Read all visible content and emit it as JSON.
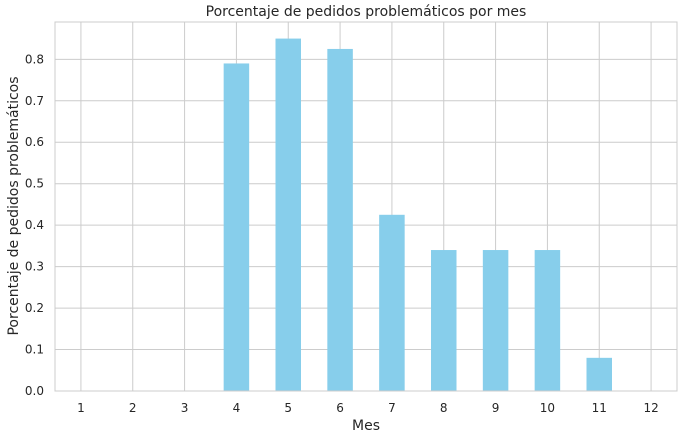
{
  "chart_data": {
    "type": "bar",
    "title": "Porcentaje de pedidos problemáticos por mes",
    "xlabel": "Mes",
    "ylabel": "Porcentaje de pedidos problemáticos",
    "categories": [
      "1",
      "2",
      "3",
      "4",
      "5",
      "6",
      "7",
      "8",
      "9",
      "10",
      "11",
      "12"
    ],
    "values": [
      0,
      0,
      0,
      0.79,
      0.85,
      0.825,
      0.425,
      0.34,
      0.34,
      0.34,
      0.08,
      0
    ],
    "ylim": [
      0,
      0.89
    ],
    "yticks": [
      "0.0",
      "0.1",
      "0.2",
      "0.3",
      "0.4",
      "0.5",
      "0.6",
      "0.7",
      "0.8"
    ],
    "grid": true,
    "legend": "none",
    "bar_color": "#87ceeb",
    "grid_color": "#cccccc"
  }
}
